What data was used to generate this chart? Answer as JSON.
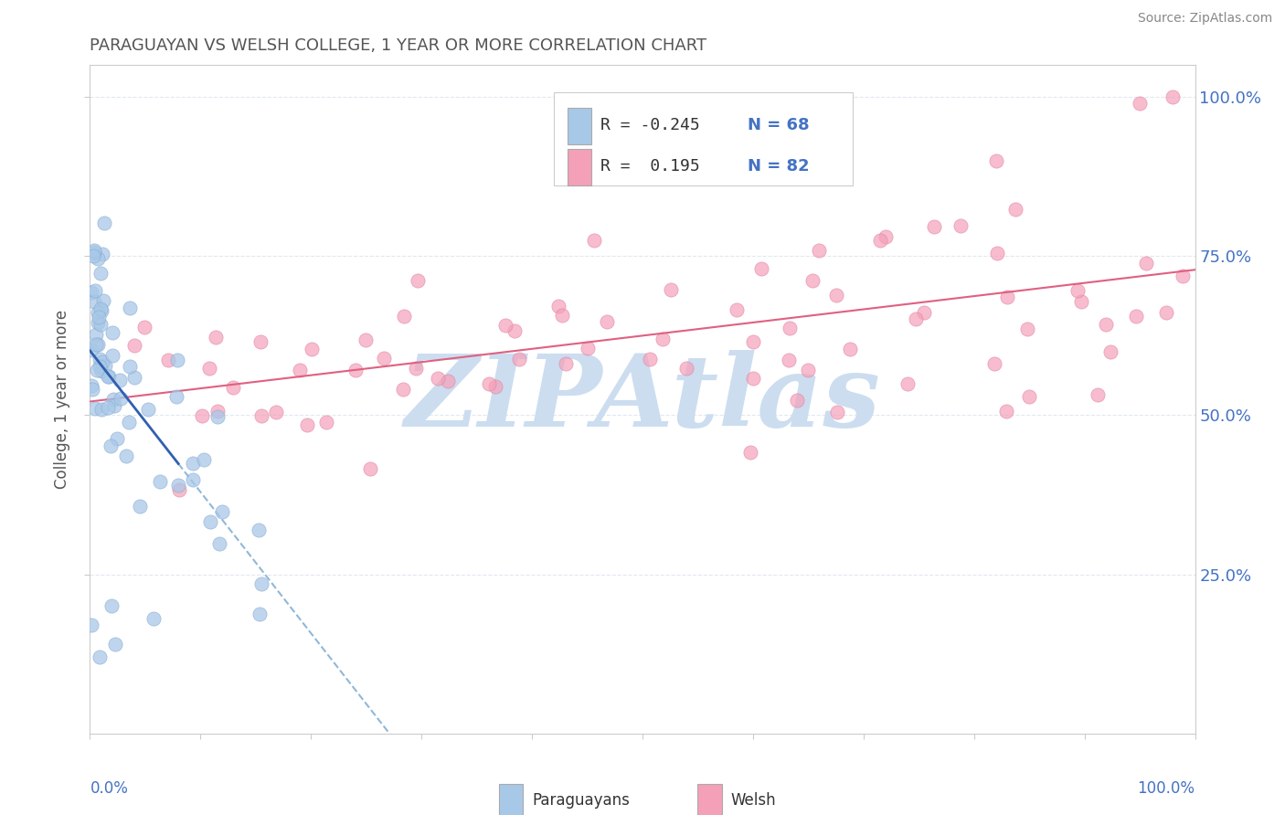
{
  "title": "PARAGUAYAN VS WELSH COLLEGE, 1 YEAR OR MORE CORRELATION CHART",
  "source": "Source: ZipAtlas.com",
  "ylabel": "College, 1 year or more",
  "y_tick_labels": [
    "25.0%",
    "50.0%",
    "75.0%",
    "100.0%"
  ],
  "x_lim": [
    0.0,
    1.0
  ],
  "y_lim": [
    0.0,
    1.05
  ],
  "legend_r1_text": "R = -0.245",
  "legend_n1_text": "N = 68",
  "legend_r2_text": "R =  0.195",
  "legend_n2_text": "N = 82",
  "paraguayan_color": "#a8c8e8",
  "paraguayan_edge": "#88aad0",
  "welsh_color": "#f4a0b8",
  "welsh_edge": "#e080a0",
  "trend_paraguayan_color": "#3060b0",
  "trend_welsh_color": "#e06080",
  "trend_dashed_color": "#90b8d8",
  "watermark_color": "#ccddf0",
  "watermark_text": "ZIPAtlas",
  "background_color": "#ffffff",
  "grid_color": "#e0e8f0",
  "grid_style": "--",
  "title_color": "#555555",
  "source_color": "#888888",
  "ylabel_color": "#555555",
  "tick_label_color": "#4472c4",
  "legend_r_color": "#333333",
  "legend_n_color": "#4472c4"
}
